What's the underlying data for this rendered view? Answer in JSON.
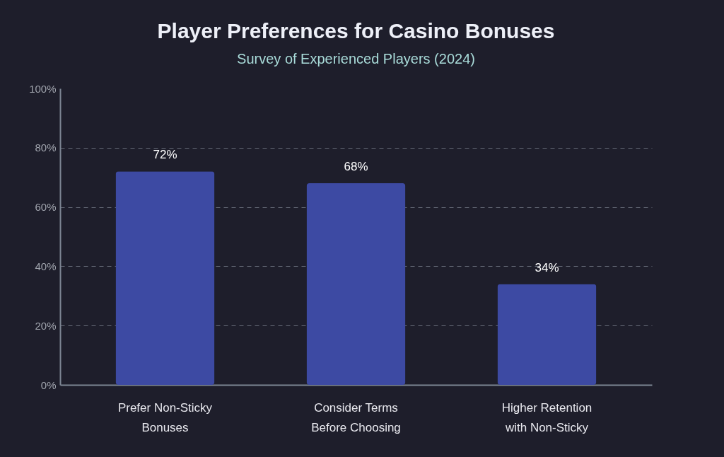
{
  "chart_data": {
    "type": "bar",
    "title": "Player Preferences for Casino Bonuses",
    "subtitle": "Survey of Experienced Players (2024)",
    "categories": [
      "Prefer Non-Sticky Bonuses",
      "Consider Terms Before Choosing",
      "Higher Retention with Non-Sticky"
    ],
    "values": [
      72,
      68,
      34
    ],
    "value_labels": [
      "72%",
      "68%",
      "34%"
    ],
    "color": "#3d4aa3",
    "ylim": [
      0,
      100
    ],
    "yticks": [
      {
        "value": 0,
        "label": "0%"
      },
      {
        "value": 20,
        "label": "20%"
      },
      {
        "value": 40,
        "label": "40%"
      },
      {
        "value": 60,
        "label": "60%"
      },
      {
        "value": 80,
        "label": "80%"
      },
      {
        "value": 100,
        "label": "100%"
      }
    ],
    "grid": "y",
    "line_style": "dashed"
  }
}
